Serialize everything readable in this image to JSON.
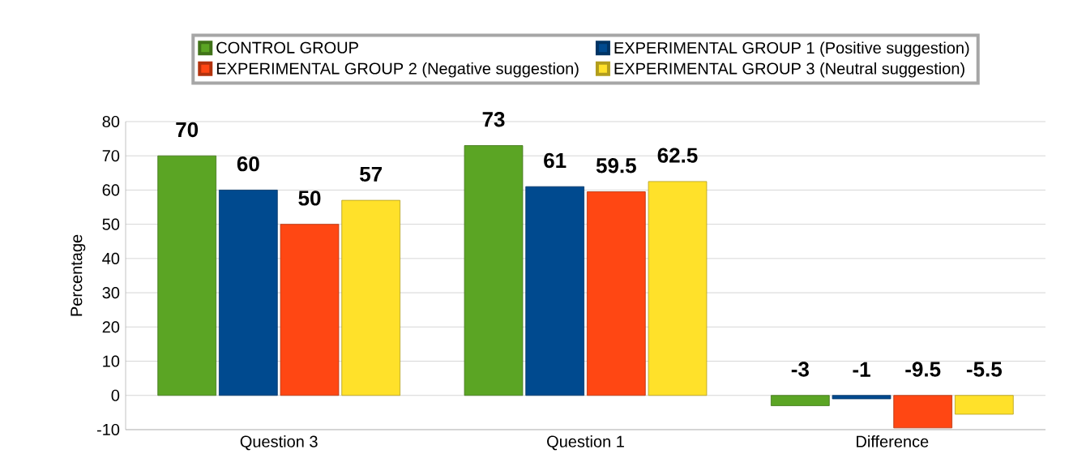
{
  "chart_data": {
    "type": "bar",
    "ylabel": "Percentage",
    "categories": [
      "Question 3",
      "Question 1",
      "Difference"
    ],
    "series": [
      {
        "name": "CONTROL GROUP",
        "color": "#5ba524",
        "values": [
          70,
          73,
          -3
        ]
      },
      {
        "name": "EXPERIMENTAL GROUP 1 (Positive suggestion)",
        "color": "#004a8f",
        "values": [
          60,
          61,
          -1
        ]
      },
      {
        "name": "EXPERIMENTAL GROUP 2 (Negative suggestion)",
        "color": "#ff4713",
        "values": [
          50,
          59.5,
          -9.5
        ]
      },
      {
        "name": "EXPERIMENTAL GROUP 3 (Neutral suggestion)",
        "color": "#ffe12a",
        "values": [
          57,
          62.5,
          -5.5
        ]
      }
    ],
    "ylim": [
      -10,
      80
    ],
    "yticks": [
      -10,
      0,
      10,
      20,
      30,
      40,
      50,
      60,
      70,
      80
    ],
    "grid": "y",
    "legend": "top",
    "data_labels": true
  }
}
